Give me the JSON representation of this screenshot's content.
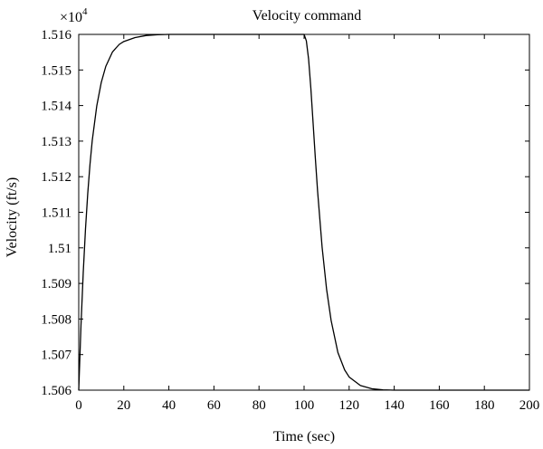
{
  "chart_data": {
    "type": "line",
    "title": "Velocity command",
    "xlabel": "Time (sec)",
    "ylabel": "Velocity (ft/s)",
    "y_multiplier": {
      "base": "×10",
      "exponent": "4"
    },
    "xlim": [
      0,
      200
    ],
    "ylim": [
      1.506,
      1.516
    ],
    "grid": false,
    "x_ticks": [
      0,
      20,
      40,
      60,
      80,
      100,
      120,
      140,
      160,
      180,
      200
    ],
    "x_tick_labels": [
      "0",
      "20",
      "40",
      "60",
      "80",
      "100",
      "120",
      "140",
      "160",
      "180",
      "200"
    ],
    "y_ticks": [
      1.506,
      1.507,
      1.508,
      1.509,
      1.51,
      1.511,
      1.512,
      1.513,
      1.514,
      1.515,
      1.516
    ],
    "y_tick_labels": [
      "1.506",
      "1.507",
      "1.508",
      "1.509",
      "1.51",
      "1.511",
      "1.512",
      "1.513",
      "1.514",
      "1.515",
      "1.516"
    ],
    "series": [
      {
        "color": "#000000",
        "x": [
          0,
          1,
          2,
          3,
          4,
          5,
          6,
          8,
          10,
          12,
          15,
          18,
          20,
          25,
          30,
          35,
          40,
          50,
          60,
          70,
          80,
          90,
          99,
          100,
          101,
          102,
          103,
          104,
          105,
          106,
          108,
          110,
          112,
          115,
          118,
          120,
          125,
          130,
          135,
          140,
          150,
          160,
          170,
          180,
          190,
          200
        ],
        "y": [
          1.506,
          1.50782,
          1.50931,
          1.51053,
          1.51153,
          1.51235,
          1.51302,
          1.51399,
          1.51465,
          1.5151,
          1.51551,
          1.51572,
          1.5158,
          1.51591,
          1.51597,
          1.51599,
          1.516,
          1.516,
          1.516,
          1.516,
          1.516,
          1.516,
          1.516,
          1.516,
          1.51582,
          1.51531,
          1.51449,
          1.51351,
          1.51252,
          1.51159,
          1.51002,
          1.50883,
          1.50796,
          1.50706,
          1.50657,
          1.50637,
          1.50613,
          1.50604,
          1.50601,
          1.506,
          1.506,
          1.506,
          1.506,
          1.506,
          1.506,
          1.506
        ]
      }
    ]
  }
}
